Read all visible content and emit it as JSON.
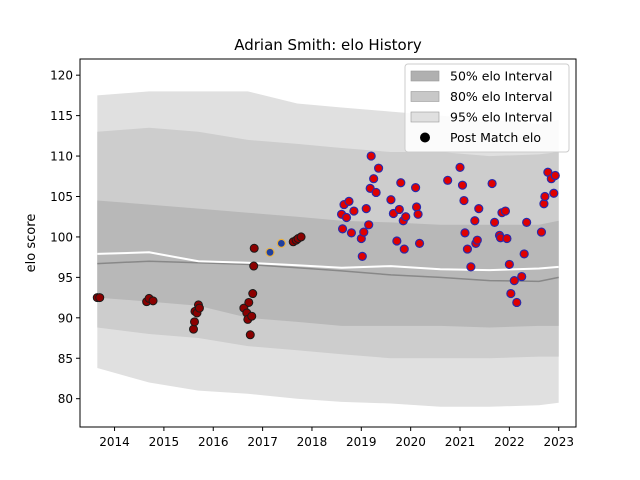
{
  "chart_data": {
    "type": "scatter",
    "title": "Adrian Smith: elo History",
    "xlabel": "",
    "ylabel": "elo score",
    "xlim": [
      2013.3,
      2023.35
    ],
    "ylim": [
      76.5,
      122.0
    ],
    "x_ticks": [
      2014,
      2015,
      2016,
      2017,
      2018,
      2019,
      2020,
      2021,
      2022,
      2023
    ],
    "y_ticks": [
      80,
      85,
      90,
      95,
      100,
      105,
      110,
      115,
      120
    ],
    "legend_position": "top-right",
    "legend": [
      {
        "label": "50% elo Interval",
        "kind": "patch",
        "color": "#b0b0b0"
      },
      {
        "label": "80% elo Interval",
        "kind": "patch",
        "color": "#c8c8c8"
      },
      {
        "label": "95% elo Interval",
        "kind": "patch",
        "color": "#e0e0e0"
      },
      {
        "label": "Post Match elo",
        "kind": "marker",
        "color": "#000000"
      }
    ],
    "colors": {
      "band95": "#e0e0e0",
      "band80": "#cdcdcd",
      "band50": "#b8b8b8",
      "median_line": "#888888",
      "mean_line": "#ffffff",
      "early_point_fill": "#8b0000",
      "early_point_edge": "#1a1a1a",
      "late_point_fill": "#e00000",
      "late_point_edge": "#2a2aaa",
      "highlight_fill": "#1f3f9f",
      "highlight_edge": "#e8b040"
    },
    "bands": {
      "x": [
        2013.65,
        2014.7,
        2015.7,
        2016.7,
        2017.7,
        2018.6,
        2019.6,
        2020.6,
        2021.6,
        2022.6,
        2023.0
      ],
      "p95": [
        [
          83.8,
          117.5
        ],
        [
          82.0,
          118.0
        ],
        [
          81.0,
          118.0
        ],
        [
          80.6,
          118.0
        ],
        [
          80.0,
          116.5
        ],
        [
          79.6,
          116.0
        ],
        [
          79.4,
          115.5
        ],
        [
          79.0,
          115.0
        ],
        [
          79.0,
          114.5
        ],
        [
          79.2,
          114.0
        ],
        [
          79.5,
          114.5
        ]
      ],
      "p80": [
        [
          88.8,
          113.0
        ],
        [
          88.0,
          113.5
        ],
        [
          87.5,
          113.0
        ],
        [
          86.5,
          112.0
        ],
        [
          86.0,
          111.5
        ],
        [
          85.5,
          111.0
        ],
        [
          85.0,
          110.5
        ],
        [
          85.0,
          110.5
        ],
        [
          85.0,
          110.0
        ],
        [
          85.2,
          110.2
        ],
        [
          85.2,
          110.5
        ]
      ],
      "p50": [
        [
          92.5,
          104.5
        ],
        [
          92.0,
          104.0
        ],
        [
          91.5,
          103.5
        ],
        [
          90.0,
          103.0
        ],
        [
          89.5,
          102.5
        ],
        [
          89.0,
          102.0
        ],
        [
          89.0,
          101.8
        ],
        [
          89.0,
          101.5
        ],
        [
          88.8,
          101.5
        ],
        [
          89.0,
          101.5
        ],
        [
          89.0,
          102.0
        ]
      ],
      "median": [
        96.7,
        97.0,
        96.8,
        96.6,
        96.2,
        95.8,
        95.3,
        95.0,
        94.6,
        94.5,
        95.0
      ],
      "mean": [
        97.9,
        98.1,
        97.0,
        96.8,
        96.5,
        96.2,
        96.4,
        96.0,
        95.9,
        96.1,
        96.3
      ]
    },
    "points_early": [
      [
        2013.65,
        92.5
      ],
      [
        2013.7,
        92.5
      ],
      [
        2014.65,
        92.0
      ],
      [
        2014.7,
        92.4
      ],
      [
        2014.78,
        92.1
      ],
      [
        2015.6,
        88.6
      ],
      [
        2015.62,
        89.5
      ],
      [
        2015.63,
        90.8
      ],
      [
        2015.67,
        90.6
      ],
      [
        2015.7,
        91.6
      ],
      [
        2015.72,
        91.2
      ],
      [
        2016.62,
        91.2
      ],
      [
        2016.68,
        90.6
      ],
      [
        2016.7,
        89.8
      ],
      [
        2016.72,
        91.9
      ],
      [
        2016.75,
        87.9
      ],
      [
        2016.78,
        90.2
      ],
      [
        2016.8,
        93.0
      ],
      [
        2016.82,
        96.4
      ],
      [
        2016.83,
        98.6
      ],
      [
        2017.62,
        99.4
      ],
      [
        2017.68,
        99.6
      ],
      [
        2017.72,
        99.8
      ],
      [
        2017.78,
        100.0
      ]
    ],
    "points_highlight": [
      [
        2017.15,
        98.1
      ],
      [
        2017.38,
        99.2
      ]
    ],
    "points_late": [
      [
        2018.6,
        102.8
      ],
      [
        2018.62,
        101.0
      ],
      [
        2018.65,
        104.0
      ],
      [
        2018.7,
        102.4
      ],
      [
        2018.75,
        104.4
      ],
      [
        2018.8,
        100.5
      ],
      [
        2018.85,
        103.2
      ],
      [
        2019.0,
        99.8
      ],
      [
        2019.02,
        97.6
      ],
      [
        2019.05,
        100.6
      ],
      [
        2019.1,
        103.5
      ],
      [
        2019.15,
        101.5
      ],
      [
        2019.18,
        106.0
      ],
      [
        2019.2,
        110.0
      ],
      [
        2019.25,
        107.2
      ],
      [
        2019.3,
        105.5
      ],
      [
        2019.35,
        108.5
      ],
      [
        2019.6,
        104.6
      ],
      [
        2019.65,
        102.9
      ],
      [
        2019.72,
        99.5
      ],
      [
        2019.77,
        103.4
      ],
      [
        2019.8,
        106.7
      ],
      [
        2019.85,
        102.0
      ],
      [
        2019.87,
        98.5
      ],
      [
        2019.9,
        102.5
      ],
      [
        2020.1,
        106.1
      ],
      [
        2020.12,
        103.7
      ],
      [
        2020.15,
        102.8
      ],
      [
        2020.18,
        99.2
      ],
      [
        2020.75,
        107.0
      ],
      [
        2021.0,
        108.6
      ],
      [
        2021.05,
        106.4
      ],
      [
        2021.08,
        104.5
      ],
      [
        2021.1,
        100.5
      ],
      [
        2021.15,
        98.5
      ],
      [
        2021.22,
        96.3
      ],
      [
        2021.3,
        102.0
      ],
      [
        2021.32,
        99.2
      ],
      [
        2021.35,
        99.6
      ],
      [
        2021.38,
        103.5
      ],
      [
        2021.65,
        106.6
      ],
      [
        2021.7,
        101.8
      ],
      [
        2021.8,
        100.2
      ],
      [
        2021.82,
        99.9
      ],
      [
        2021.85,
        103.0
      ],
      [
        2021.92,
        103.2
      ],
      [
        2021.95,
        99.8
      ],
      [
        2022.0,
        96.6
      ],
      [
        2022.03,
        93.0
      ],
      [
        2022.1,
        94.6
      ],
      [
        2022.15,
        91.9
      ],
      [
        2022.25,
        95.1
      ],
      [
        2022.3,
        97.9
      ],
      [
        2022.35,
        101.8
      ],
      [
        2022.65,
        100.6
      ],
      [
        2022.7,
        104.1
      ],
      [
        2022.72,
        105.0
      ],
      [
        2022.78,
        108.0
      ],
      [
        2022.85,
        107.2
      ],
      [
        2022.9,
        105.4
      ],
      [
        2022.93,
        107.6
      ]
    ]
  }
}
